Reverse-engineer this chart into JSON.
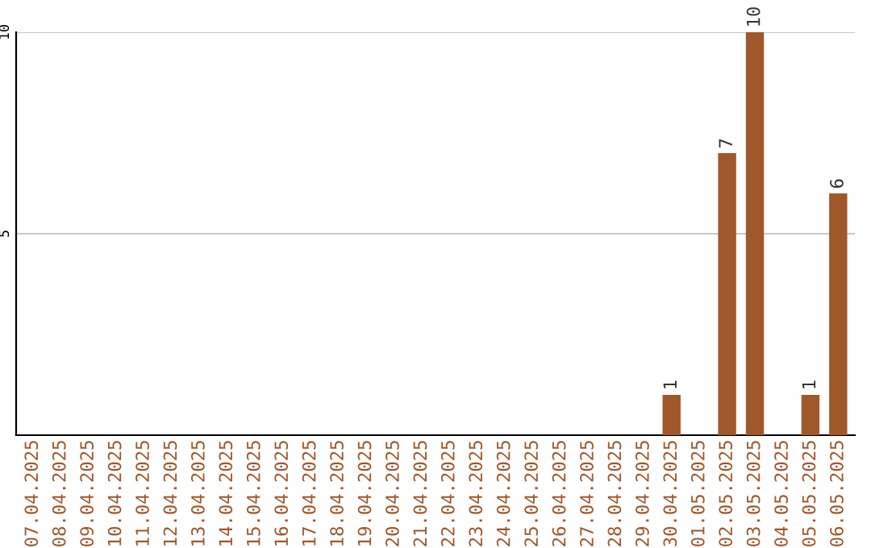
{
  "chart_data": {
    "type": "bar",
    "categories": [
      "07.04.2025",
      "08.04.2025",
      "09.04.2025",
      "10.04.2025",
      "11.04.2025",
      "12.04.2025",
      "13.04.2025",
      "14.04.2025",
      "15.04.2025",
      "16.04.2025",
      "17.04.2025",
      "18.04.2025",
      "19.04.2025",
      "20.04.2025",
      "21.04.2025",
      "22.04.2025",
      "23.04.2025",
      "24.04.2025",
      "25.04.2025",
      "26.04.2025",
      "27.04.2025",
      "28.04.2025",
      "29.04.2025",
      "30.04.2025",
      "01.05.2025",
      "02.05.2025",
      "03.05.2025",
      "04.05.2025",
      "05.05.2025",
      "06.05.2025"
    ],
    "values": [
      0,
      0,
      0,
      0,
      0,
      0,
      0,
      0,
      0,
      0,
      0,
      0,
      0,
      0,
      0,
      0,
      0,
      0,
      0,
      0,
      0,
      0,
      0,
      1,
      0,
      7,
      10,
      0,
      1,
      6
    ],
    "value_labels": [
      null,
      null,
      null,
      null,
      null,
      null,
      null,
      null,
      null,
      null,
      null,
      null,
      null,
      null,
      null,
      null,
      null,
      null,
      null,
      null,
      null,
      null,
      null,
      "1",
      null,
      "7",
      "10",
      null,
      "1",
      "6"
    ],
    "color": "#a0572a",
    "ylim": [
      0,
      10
    ],
    "yticks": [
      5,
      10
    ],
    "grid": "y",
    "legend": false
  }
}
